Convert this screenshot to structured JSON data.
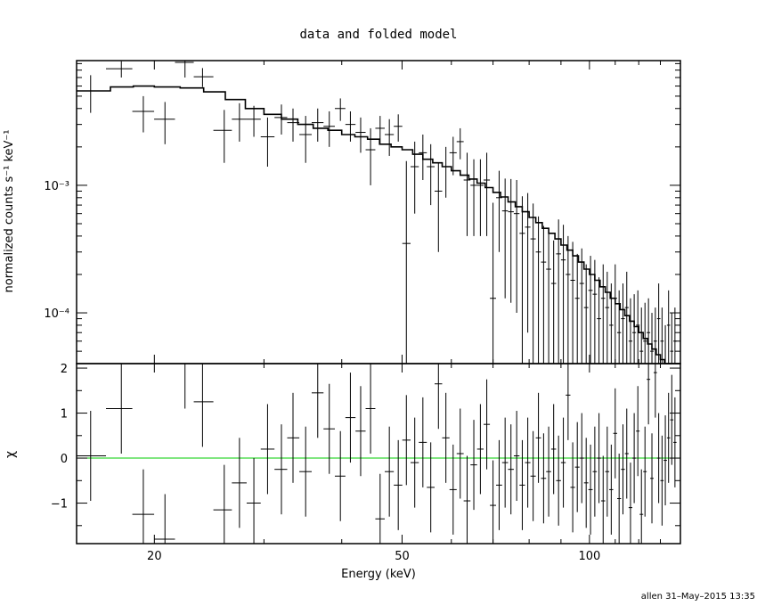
{
  "title": "data and folded model",
  "footer": "allen 31–May–2015 13:35",
  "colors": {
    "axes": "#000000",
    "zero_line": "#00cc00",
    "background": "#ffffff"
  },
  "chart_data": [
    {
      "type": "scatter",
      "panel": "spectrum",
      "xscale": "log",
      "yscale": "log",
      "xlabel": "Energy (keV)",
      "ylabel": "normalized counts s⁻¹ keV⁻¹",
      "xlim": [
        15,
        140
      ],
      "ylim": [
        4e-05,
        0.0095
      ],
      "ytick_labels": [
        "10⁻³",
        "10⁻⁴"
      ],
      "ytick_values": [
        0.001,
        0.0001
      ],
      "data": {
        "name": "data",
        "x": [
          15.8,
          17.7,
          19.2,
          20.8,
          22.4,
          23.9,
          25.9,
          27.4,
          28.9,
          30.4,
          32.0,
          33.4,
          35.0,
          36.6,
          38.2,
          39.8,
          41.3,
          42.9,
          44.5,
          46.1,
          47.7,
          49.3,
          50.8,
          52.4,
          54.0,
          55.6,
          57.2,
          58.8,
          60.4,
          62.0,
          63.6,
          65.2,
          66.8,
          68.4,
          70.0,
          71.6,
          73.2,
          74.8,
          76.4,
          78.0,
          79.6,
          81.2,
          82.8,
          84.4,
          86.0,
          87.6,
          89.2,
          90.8,
          92.4,
          94.0,
          95.6,
          97.2,
          98.8,
          100.4,
          102.0,
          103.6,
          105.2,
          106.8,
          108.4,
          110.0,
          111.6,
          113.2,
          114.8,
          116.4,
          118.0,
          119.6,
          121.2,
          122.8,
          124.4,
          126.0,
          127.6,
          129.2,
          130.8,
          132.4,
          134.0,
          135.6,
          137.2
        ],
        "y": [
          0.0055,
          0.0082,
          0.0038,
          0.0033,
          0.0092,
          0.0071,
          0.0027,
          0.0033,
          0.0033,
          0.0024,
          0.0034,
          0.0031,
          0.0025,
          0.0031,
          0.0029,
          0.004,
          0.003,
          0.0026,
          0.0019,
          0.0028,
          0.0025,
          0.0029,
          0.00035,
          0.0014,
          0.0018,
          0.0014,
          0.0009,
          0.0014,
          0.0018,
          0.0022,
          0.0011,
          0.001,
          0.001,
          0.0011,
          0.00013,
          0.0008,
          0.00063,
          0.00062,
          0.0006,
          0.00042,
          0.00047,
          0.00038,
          0.0003,
          0.00025,
          0.00022,
          0.00017,
          0.00029,
          0.00026,
          0.0002,
          0.00018,
          0.00013,
          0.00017,
          0.00011,
          0.00015,
          0.00014,
          9e-05,
          0.00013,
          0.00011,
          8e-05,
          0.00013,
          7e-05,
          9e-05,
          0.00011,
          6e-05,
          7e-05,
          8e-05,
          5e-05,
          6e-05,
          7e-05,
          5e-05,
          6e-05,
          9e-05,
          6e-05,
          4e-05,
          8e-05,
          5e-05,
          6e-05
        ],
        "yerr_low": [
          0.0018,
          0.0012,
          0.0012,
          0.0012,
          0.0022,
          0.0012,
          0.0012,
          0.0011,
          0.0009,
          0.001,
          0.0009,
          0.0009,
          0.001,
          0.0009,
          0.0009,
          0.0008,
          0.0008,
          0.0008,
          0.0009,
          0.0007,
          0.0008,
          0.0007,
          0.00031,
          0.0008,
          0.0007,
          0.0007,
          0.0006,
          0.0006,
          0.0006,
          0.0006,
          0.0007,
          0.0006,
          0.0006,
          0.0007,
          0.00011,
          0.0005,
          0.0005,
          0.0005,
          0.0005,
          0.0004,
          0.0004,
          0.00034,
          0.00027,
          0.00023,
          0.0002,
          0.00015,
          0.00025,
          0.00023,
          0.00017,
          0.00016,
          0.00011,
          0.00015,
          0.0001,
          0.00013,
          0.00012,
          8e-05,
          0.00011,
          0.0001,
          7e-05,
          0.00011,
          6e-05,
          8e-05,
          0.0001,
          5e-05,
          6e-05,
          7e-05,
          4e-05,
          5e-05,
          6e-05,
          4e-05,
          5e-05,
          8e-05,
          5e-05,
          3e-05,
          7e-05,
          4e-05,
          5e-05
        ],
        "yerr_high": [
          0.0018,
          0.0012,
          0.0012,
          0.0012,
          0.0022,
          0.0012,
          0.0012,
          0.0011,
          0.0009,
          0.001,
          0.0009,
          0.0009,
          0.001,
          0.0009,
          0.0009,
          0.0008,
          0.0008,
          0.0008,
          0.0009,
          0.0007,
          0.0008,
          0.0007,
          0.0012,
          0.0008,
          0.0007,
          0.0007,
          0.0006,
          0.0006,
          0.0006,
          0.0006,
          0.0007,
          0.0006,
          0.0006,
          0.0007,
          0.0006,
          0.0005,
          0.0005,
          0.0005,
          0.0005,
          0.0004,
          0.0004,
          0.00034,
          0.00027,
          0.00023,
          0.0002,
          0.0002,
          0.00025,
          0.00023,
          0.0002,
          0.00018,
          0.00016,
          0.00015,
          0.00013,
          0.00013,
          0.00012,
          0.0001,
          0.00011,
          0.0001,
          9e-05,
          0.00011,
          8e-05,
          8e-05,
          0.0001,
          7e-05,
          7e-05,
          7e-05,
          6e-05,
          6e-05,
          6e-05,
          5e-05,
          5e-05,
          8e-05,
          5e-05,
          4e-05,
          7e-05,
          5e-05,
          5e-05
        ]
      },
      "model": {
        "name": "folded model",
        "type": "step",
        "x": [
          15.0,
          17.0,
          18.5,
          20.0,
          22.0,
          24.0,
          26.0,
          28.0,
          30.0,
          32.0,
          34.0,
          36.0,
          38.0,
          40.0,
          42.0,
          44.0,
          46.0,
          48.0,
          50.0,
          52.0,
          54.0,
          56.0,
          58.0,
          60.0,
          62.0,
          64.0,
          66.0,
          68.0,
          70.0,
          72.0,
          74.0,
          76.0,
          78.0,
          80.0,
          82.0,
          84.0,
          86.0,
          88.0,
          90.0,
          92.0,
          94.0,
          96.0,
          98.0,
          100.0,
          102.0,
          104.0,
          106.0,
          108.0,
          110.0,
          112.0,
          114.0,
          116.0,
          118.0,
          120.0,
          122.0,
          124.0,
          126.0,
          128.0,
          130.0,
          132.0,
          134.0,
          136.0,
          138.0,
          140.0
        ],
        "y": [
          0.0055,
          0.0059,
          0.006,
          0.0059,
          0.0058,
          0.0054,
          0.0047,
          0.004,
          0.0036,
          0.0033,
          0.003,
          0.0028,
          0.0027,
          0.0025,
          0.0024,
          0.0023,
          0.0021,
          0.002,
          0.0019,
          0.00175,
          0.0016,
          0.0015,
          0.0014,
          0.0013,
          0.0012,
          0.00112,
          0.00104,
          0.00096,
          0.00088,
          0.00081,
          0.00074,
          0.00068,
          0.00062,
          0.00056,
          0.00051,
          0.00046,
          0.00042,
          0.00038,
          0.00034,
          0.00031,
          0.00028,
          0.00025,
          0.00022,
          0.0002,
          0.00018,
          0.00016,
          0.000145,
          0.00013,
          0.000118,
          0.000106,
          9.5e-05,
          8.6e-05,
          7.8e-05,
          7e-05,
          6.3e-05,
          5.7e-05,
          5.2e-05,
          4.7e-05,
          4.3e-05,
          4e-05,
          4e-05,
          4e-05,
          4e-05,
          4e-05
        ]
      }
    },
    {
      "type": "scatter",
      "panel": "residuals",
      "xscale": "log",
      "xlabel": "Energy (keV)",
      "ylabel": "χ",
      "xlim": [
        15,
        140
      ],
      "ylim": [
        -1.9,
        2.1
      ],
      "xtick_labels": [
        "20",
        "50",
        "100"
      ],
      "xtick_values": [
        20,
        50,
        100
      ],
      "ytick_labels": [
        "2",
        "1",
        "0",
        "−1"
      ],
      "ytick_values": [
        2,
        1,
        0,
        -1
      ],
      "zero_line": 0,
      "data": {
        "name": "residuals",
        "x": [
          15.8,
          17.7,
          19.2,
          20.8,
          22.4,
          23.9,
          25.9,
          27.4,
          28.9,
          30.4,
          32.0,
          33.4,
          35.0,
          36.6,
          38.2,
          39.8,
          41.3,
          42.9,
          44.5,
          46.1,
          47.7,
          49.3,
          50.8,
          52.4,
          54.0,
          55.6,
          57.2,
          58.8,
          60.4,
          62.0,
          63.6,
          65.2,
          66.8,
          68.4,
          70.0,
          71.6,
          73.2,
          74.8,
          76.4,
          78.0,
          79.6,
          81.2,
          82.8,
          84.4,
          86.0,
          87.6,
          89.2,
          90.8,
          92.4,
          94.0,
          95.6,
          97.2,
          98.8,
          100.4,
          102.0,
          103.6,
          105.2,
          106.8,
          108.4,
          110.0,
          111.6,
          113.2,
          114.8,
          116.4,
          118.0,
          119.6,
          121.2,
          122.8,
          124.4,
          126.0,
          127.6,
          129.2,
          130.8,
          132.4,
          134.0,
          135.6,
          137.2
        ],
        "y": [
          0.05,
          1.1,
          -1.25,
          -1.8,
          2.1,
          1.25,
          -1.15,
          -0.55,
          -1.0,
          0.2,
          -0.25,
          0.45,
          -0.3,
          1.45,
          0.65,
          -0.4,
          0.9,
          0.6,
          1.1,
          -1.35,
          -0.3,
          -0.6,
          0.4,
          -0.1,
          0.35,
          -0.65,
          1.65,
          0.45,
          -0.7,
          0.1,
          -0.95,
          -0.15,
          0.2,
          0.75,
          -1.05,
          -0.6,
          -0.1,
          -0.25,
          0.05,
          -0.6,
          -0.1,
          -0.4,
          0.45,
          -0.45,
          -0.3,
          0.2,
          -0.5,
          -0.1,
          1.4,
          -0.65,
          -0.2,
          0.0,
          -0.55,
          -0.7,
          -0.3,
          0.0,
          -0.95,
          -0.3,
          -0.7,
          0.55,
          -0.9,
          -0.25,
          0.1,
          -1.1,
          0.0,
          0.6,
          -1.25,
          -0.3,
          1.75,
          -0.45,
          1.9,
          0.0,
          -0.5,
          -0.05,
          0.45,
          0.85,
          0.35
        ],
        "yerr": 1.0
      }
    }
  ]
}
